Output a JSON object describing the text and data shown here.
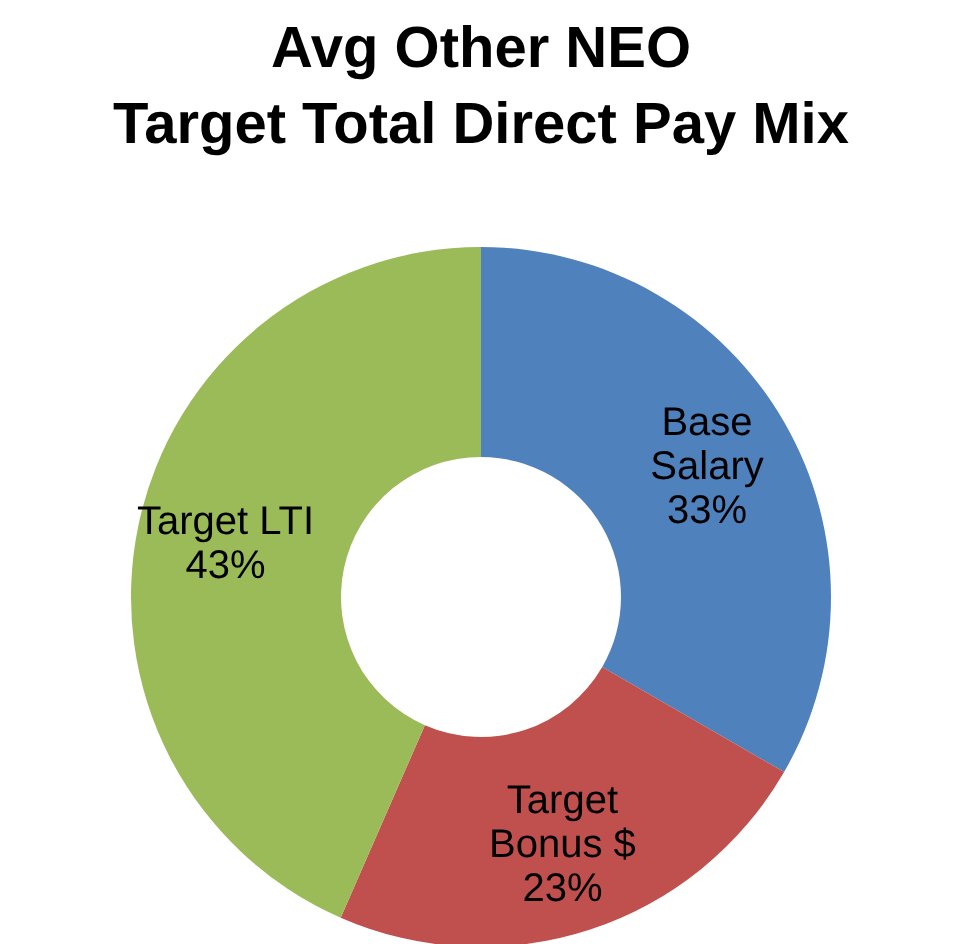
{
  "chart_data": {
    "type": "donut",
    "title": "Avg Other NEO\nTarget Total Direct Pay Mix",
    "categories": [
      "Base Salary",
      "Target Bonus $",
      "Target LTI"
    ],
    "values": [
      33,
      23,
      43
    ],
    "colors": [
      "#4f81bd",
      "#c0504d",
      "#9bbb59"
    ],
    "value_labels": [
      "33%",
      "23%",
      "43%"
    ],
    "legend": false
  }
}
